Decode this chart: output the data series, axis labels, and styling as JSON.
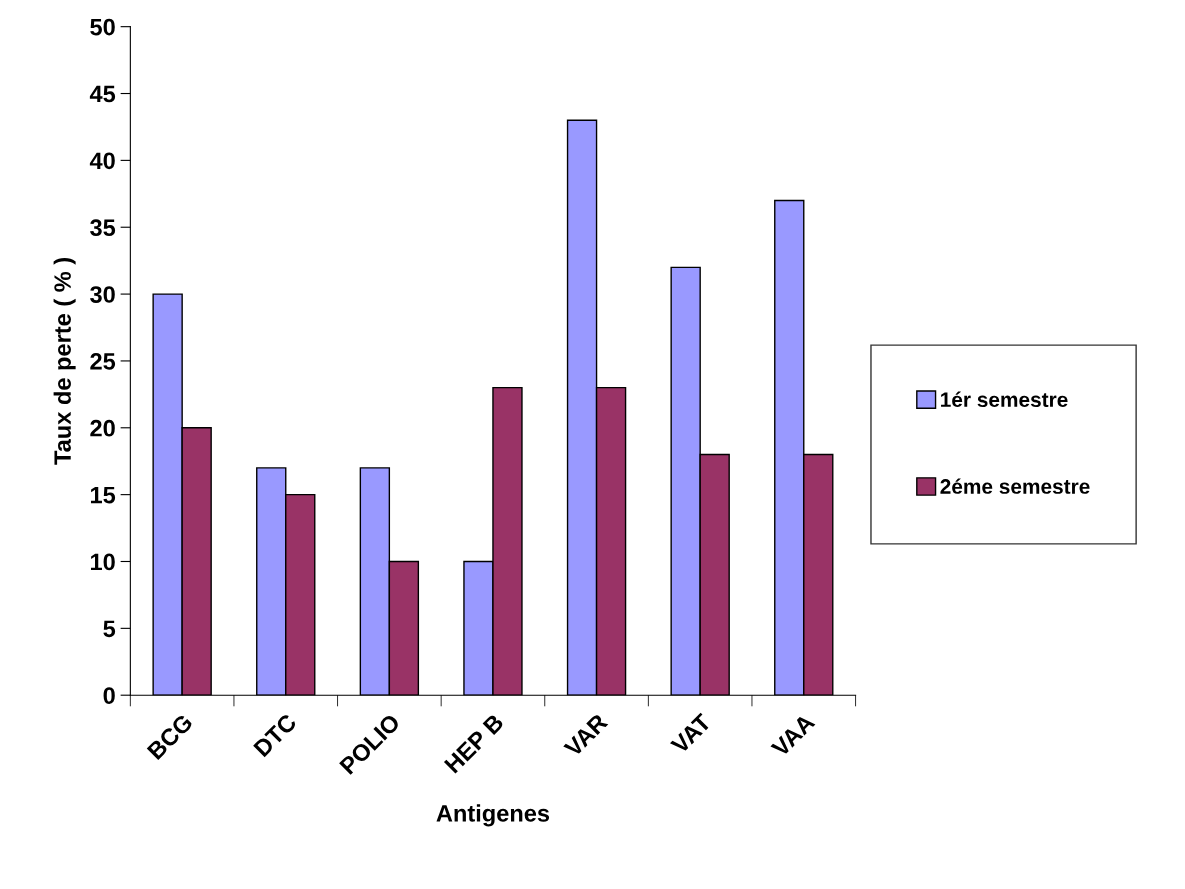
{
  "chart_data": {
    "type": "bar",
    "xlabel": "Antigenes",
    "ylabel": "Taux de perte ( % )",
    "categories": [
      "BCG",
      "DTC",
      "POLIO",
      "HEP B",
      "VAR",
      "VAT",
      "VAA"
    ],
    "series": [
      {
        "name": "1ér semestre",
        "color": "#9999ff",
        "values": [
          30,
          17,
          17,
          10,
          43,
          32,
          37
        ]
      },
      {
        "name": "2éme semestre",
        "color": "#993366",
        "values": [
          20,
          15,
          10,
          23,
          23,
          18,
          18
        ]
      }
    ],
    "ylim": [
      0,
      50
    ],
    "yticks": [
      0,
      5,
      10,
      15,
      20,
      25,
      30,
      35,
      40,
      45,
      50
    ],
    "grid": false,
    "legend": "right"
  }
}
